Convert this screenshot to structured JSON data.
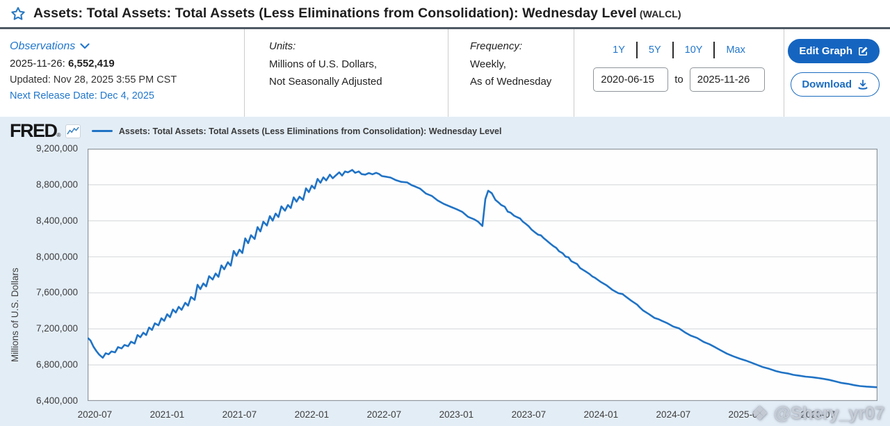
{
  "header": {
    "title": "Assets: Total Assets: Total Assets (Less Eliminations from Consolidation): Wednesday Level",
    "series_id": "(WALCL)",
    "observations": {
      "label": "Observations",
      "latest_date": "2025-11-26:",
      "latest_value": "6,552,419",
      "updated": "Updated: Nov 28, 2025 3:55 PM CST",
      "next_release": "Next Release Date: Dec 4, 2025"
    },
    "units": {
      "label": "Units:",
      "line1": "Millions of U.S. Dollars,",
      "line2": "Not Seasonally Adjusted"
    },
    "frequency": {
      "label": "Frequency:",
      "line1": "Weekly,",
      "line2": "As of Wednesday"
    },
    "range": {
      "presets": [
        "1Y",
        "5Y",
        "10Y",
        "Max"
      ],
      "start": "2020-06-15",
      "to_label": "to",
      "end": "2025-11-26"
    },
    "buttons": {
      "edit": "Edit Graph",
      "download": "Download"
    }
  },
  "chart": {
    "brand": "FRED",
    "reg_mark": "®",
    "watermark": "@Shery_yr07",
    "watermark_icon": "❖"
  },
  "colors": {
    "line": "#2073c5",
    "link_blue": "#2277cc",
    "plot_bg": "#fefefe",
    "plot_border": "#8f979e",
    "gridline": "#d9dcdf",
    "chart_bg": "#e3edf6"
  },
  "chart_data": {
    "type": "line",
    "title": "Assets: Total Assets: Total Assets (Less Eliminations from Consolidation): Wednesday Level",
    "series_name": "Assets: Total Assets: Total Assets (Less Eliminations from Consolidation): Wednesday Level",
    "xlabel": "",
    "ylabel": "Millions of U.S. Dollars",
    "units": "Millions of U.S. Dollars",
    "frequency": "Weekly, As of Wednesday",
    "legend_position": "top-left",
    "grid": "horizontal",
    "xlim": [
      2020.45,
      2025.912
    ],
    "ylim": [
      6400000,
      9200000
    ],
    "y_ticks": [
      {
        "v": 9200000,
        "label": "9,200,000"
      },
      {
        "v": 8800000,
        "label": "8,800,000"
      },
      {
        "v": 8400000,
        "label": "8,400,000"
      },
      {
        "v": 8000000,
        "label": "8,000,000"
      },
      {
        "v": 7600000,
        "label": "7,600,000"
      },
      {
        "v": 7200000,
        "label": "7,200,000"
      },
      {
        "v": 6800000,
        "label": "6,800,000"
      },
      {
        "v": 6400000,
        "label": "6,400,000"
      }
    ],
    "x_ticks": [
      {
        "x": 2020.5,
        "label": "2020-07"
      },
      {
        "x": 2021.0,
        "label": "2021-01"
      },
      {
        "x": 2021.5,
        "label": "2021-07"
      },
      {
        "x": 2022.0,
        "label": "2022-01"
      },
      {
        "x": 2022.5,
        "label": "2022-07"
      },
      {
        "x": 2023.0,
        "label": "2023-01"
      },
      {
        "x": 2023.5,
        "label": "2023-07"
      },
      {
        "x": 2024.0,
        "label": "2024-01"
      },
      {
        "x": 2024.5,
        "label": "2024-07"
      },
      {
        "x": 2025.0,
        "label": "2025-01"
      },
      {
        "x": 2025.5,
        "label": "2025-07"
      }
    ],
    "points": [
      [
        2020.455,
        7095000
      ],
      [
        2020.47,
        7070000
      ],
      [
        2020.49,
        7005000
      ],
      [
        2020.51,
        6955000
      ],
      [
        2020.53,
        6915000
      ],
      [
        2020.555,
        6880000
      ],
      [
        2020.575,
        6930000
      ],
      [
        2020.595,
        6918000
      ],
      [
        2020.615,
        6950000
      ],
      [
        2020.64,
        6940000
      ],
      [
        2020.66,
        6998000
      ],
      [
        2020.685,
        6984000
      ],
      [
        2020.705,
        7022000
      ],
      [
        2020.73,
        7008000
      ],
      [
        2020.75,
        7058000
      ],
      [
        2020.775,
        7038000
      ],
      [
        2020.795,
        7132000
      ],
      [
        2020.815,
        7108000
      ],
      [
        2020.835,
        7158000
      ],
      [
        2020.855,
        7132000
      ],
      [
        2020.875,
        7215000
      ],
      [
        2020.895,
        7188000
      ],
      [
        2020.915,
        7262000
      ],
      [
        2020.94,
        7240000
      ],
      [
        2020.96,
        7318000
      ],
      [
        2020.98,
        7290000
      ],
      [
        2021.0,
        7363000
      ],
      [
        2021.02,
        7330000
      ],
      [
        2021.04,
        7415000
      ],
      [
        2021.06,
        7382000
      ],
      [
        2021.08,
        7445000
      ],
      [
        2021.1,
        7412000
      ],
      [
        2021.125,
        7490000
      ],
      [
        2021.145,
        7458000
      ],
      [
        2021.165,
        7555000
      ],
      [
        2021.19,
        7522000
      ],
      [
        2021.21,
        7690000
      ],
      [
        2021.23,
        7642000
      ],
      [
        2021.25,
        7705000
      ],
      [
        2021.27,
        7672000
      ],
      [
        2021.29,
        7785000
      ],
      [
        2021.315,
        7748000
      ],
      [
        2021.335,
        7815000
      ],
      [
        2021.355,
        7778000
      ],
      [
        2021.375,
        7905000
      ],
      [
        2021.395,
        7862000
      ],
      [
        2021.42,
        7940000
      ],
      [
        2021.44,
        7902000
      ],
      [
        2021.46,
        8065000
      ],
      [
        2021.48,
        8012000
      ],
      [
        2021.5,
        8080000
      ],
      [
        2021.52,
        8042000
      ],
      [
        2021.54,
        8205000
      ],
      [
        2021.56,
        8152000
      ],
      [
        2021.58,
        8240000
      ],
      [
        2021.605,
        8198000
      ],
      [
        2021.625,
        8330000
      ],
      [
        2021.645,
        8282000
      ],
      [
        2021.665,
        8390000
      ],
      [
        2021.69,
        8348000
      ],
      [
        2021.71,
        8452000
      ],
      [
        2021.73,
        8402000
      ],
      [
        2021.75,
        8480000
      ],
      [
        2021.77,
        8442000
      ],
      [
        2021.79,
        8560000
      ],
      [
        2021.815,
        8512000
      ],
      [
        2021.835,
        8575000
      ],
      [
        2021.855,
        8542000
      ],
      [
        2021.875,
        8660000
      ],
      [
        2021.895,
        8612000
      ],
      [
        2021.915,
        8668000
      ],
      [
        2021.94,
        8632000
      ],
      [
        2021.96,
        8760000
      ],
      [
        2021.98,
        8718000
      ],
      [
        2022.0,
        8790000
      ],
      [
        2022.02,
        8758000
      ],
      [
        2022.04,
        8865000
      ],
      [
        2022.06,
        8822000
      ],
      [
        2022.08,
        8882000
      ],
      [
        2022.1,
        8848000
      ],
      [
        2022.125,
        8912000
      ],
      [
        2022.145,
        8872000
      ],
      [
        2022.165,
        8902000
      ],
      [
        2022.19,
        8938000
      ],
      [
        2022.21,
        8902000
      ],
      [
        2022.23,
        8948000
      ],
      [
        2022.25,
        8938000
      ],
      [
        2022.28,
        8965000
      ],
      [
        2022.3,
        8932000
      ],
      [
        2022.325,
        8948000
      ],
      [
        2022.345,
        8918000
      ],
      [
        2022.37,
        8912000
      ],
      [
        2022.395,
        8930000
      ],
      [
        2022.42,
        8916000
      ],
      [
        2022.445,
        8932000
      ],
      [
        2022.465,
        8920000
      ],
      [
        2022.485,
        8896000
      ],
      [
        2022.51,
        8890000
      ],
      [
        2022.545,
        8880000
      ],
      [
        2022.58,
        8852000
      ],
      [
        2022.62,
        8832000
      ],
      [
        2022.66,
        8826000
      ],
      [
        2022.69,
        8796000
      ],
      [
        2022.715,
        8780000
      ],
      [
        2022.75,
        8756000
      ],
      [
        2022.79,
        8702000
      ],
      [
        2022.83,
        8676000
      ],
      [
        2022.87,
        8626000
      ],
      [
        2022.915,
        8586000
      ],
      [
        2022.96,
        8556000
      ],
      [
        2023.0,
        8530000
      ],
      [
        2023.04,
        8500000
      ],
      [
        2023.08,
        8445000
      ],
      [
        2023.125,
        8415000
      ],
      [
        2023.15,
        8390000
      ],
      [
        2023.18,
        8342000
      ],
      [
        2023.2,
        8640000
      ],
      [
        2023.22,
        8734000
      ],
      [
        2023.245,
        8706000
      ],
      [
        2023.27,
        8632000
      ],
      [
        2023.29,
        8605000
      ],
      [
        2023.31,
        8576000
      ],
      [
        2023.335,
        8556000
      ],
      [
        2023.355,
        8502000
      ],
      [
        2023.375,
        8490000
      ],
      [
        2023.4,
        8456000
      ],
      [
        2023.42,
        8440000
      ],
      [
        2023.44,
        8426000
      ],
      [
        2023.46,
        8390000
      ],
      [
        2023.48,
        8366000
      ],
      [
        2023.5,
        8340000
      ],
      [
        2023.52,
        8302000
      ],
      [
        2023.54,
        8276000
      ],
      [
        2023.565,
        8246000
      ],
      [
        2023.585,
        8238000
      ],
      [
        2023.605,
        8206000
      ],
      [
        2023.625,
        8180000
      ],
      [
        2023.65,
        8146000
      ],
      [
        2023.67,
        8120000
      ],
      [
        2023.69,
        8100000
      ],
      [
        2023.71,
        8062000
      ],
      [
        2023.735,
        8040000
      ],
      [
        2023.755,
        8002000
      ],
      [
        2023.775,
        7996000
      ],
      [
        2023.795,
        7952000
      ],
      [
        2023.815,
        7936000
      ],
      [
        2023.835,
        7920000
      ],
      [
        2023.855,
        7876000
      ],
      [
        2023.875,
        7856000
      ],
      [
        2023.9,
        7832000
      ],
      [
        2023.92,
        7810000
      ],
      [
        2023.94,
        7782000
      ],
      [
        2023.96,
        7766000
      ],
      [
        2023.98,
        7742000
      ],
      [
        2024.0,
        7720000
      ],
      [
        2024.04,
        7682000
      ],
      [
        2024.08,
        7632000
      ],
      [
        2024.12,
        7596000
      ],
      [
        2024.15,
        7586000
      ],
      [
        2024.17,
        7560000
      ],
      [
        2024.21,
        7512000
      ],
      [
        2024.25,
        7470000
      ],
      [
        2024.27,
        7436000
      ],
      [
        2024.29,
        7406000
      ],
      [
        2024.33,
        7366000
      ],
      [
        2024.37,
        7322000
      ],
      [
        2024.4,
        7306000
      ],
      [
        2024.42,
        7290000
      ],
      [
        2024.46,
        7262000
      ],
      [
        2024.5,
        7226000
      ],
      [
        2024.54,
        7206000
      ],
      [
        2024.58,
        7162000
      ],
      [
        2024.62,
        7126000
      ],
      [
        2024.665,
        7100000
      ],
      [
        2024.71,
        7056000
      ],
      [
        2024.75,
        7030000
      ],
      [
        2024.79,
        6996000
      ],
      [
        2024.83,
        6960000
      ],
      [
        2024.87,
        6926000
      ],
      [
        2024.915,
        6896000
      ],
      [
        2024.96,
        6870000
      ],
      [
        2025.0,
        6850000
      ],
      [
        2025.04,
        6826000
      ],
      [
        2025.08,
        6800000
      ],
      [
        2025.12,
        6776000
      ],
      [
        2025.165,
        6756000
      ],
      [
        2025.21,
        6732000
      ],
      [
        2025.25,
        6716000
      ],
      [
        2025.29,
        6706000
      ],
      [
        2025.33,
        6690000
      ],
      [
        2025.375,
        6680000
      ],
      [
        2025.415,
        6670000
      ],
      [
        2025.46,
        6664000
      ],
      [
        2025.5,
        6655000
      ],
      [
        2025.54,
        6645000
      ],
      [
        2025.58,
        6634000
      ],
      [
        2025.625,
        6616000
      ],
      [
        2025.665,
        6600000
      ],
      [
        2025.71,
        6590000
      ],
      [
        2025.75,
        6576000
      ],
      [
        2025.79,
        6566000
      ],
      [
        2025.835,
        6560000
      ],
      [
        2025.875,
        6556000
      ],
      [
        2025.904,
        6552419
      ]
    ]
  }
}
